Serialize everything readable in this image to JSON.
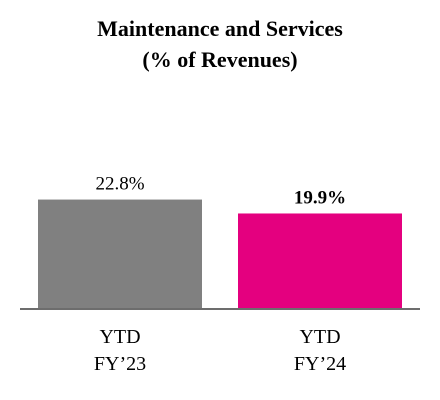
{
  "chart_data": {
    "type": "bar",
    "title": "Maintenance and Services",
    "subtitle": "(% of Revenues)",
    "categories": [
      [
        "YTD",
        "FY’23"
      ],
      [
        "YTD",
        "FY’24"
      ]
    ],
    "values": [
      22.8,
      19.9
    ],
    "data_labels": [
      "22.8%",
      "19.9%"
    ],
    "data_label_bold": [
      false,
      true
    ],
    "colors": [
      "#808080",
      "#e4007f"
    ],
    "axis_color": "#6d6d6d",
    "ylim": [
      0,
      25
    ],
    "grid": false,
    "legend": "none"
  }
}
